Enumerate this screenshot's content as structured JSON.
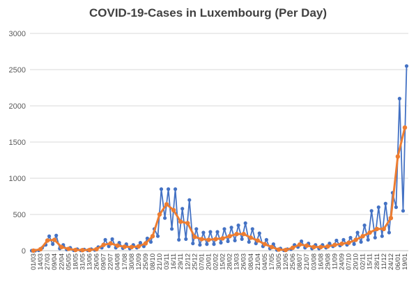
{
  "chart_data": {
    "type": "line",
    "title": "COVID-19-Cases in Luxembourg (Per Day)",
    "xlabel": "",
    "ylabel": "",
    "ylim": [
      0,
      3000
    ],
    "yticks": [
      0,
      500,
      1000,
      1500,
      2000,
      2500,
      3000
    ],
    "grid": "horizontal",
    "legend": "none",
    "categories": [
      "01/03",
      "14/03",
      "27/03",
      "09/04",
      "22/04",
      "05/05",
      "18/05",
      "31/05",
      "13/06",
      "26/06",
      "09/07",
      "22/07",
      "04/08",
      "17/08",
      "30/08",
      "12/09",
      "25/09",
      "08/10",
      "21/10",
      "03/11",
      "16/11",
      "29/11",
      "12/12",
      "25/12",
      "07/01",
      "20/01",
      "02/02",
      "15/02",
      "28/02",
      "13/03",
      "26/03",
      "08/04",
      "21/04",
      "04/05",
      "17/05",
      "30/05",
      "12/06",
      "25/06",
      "08/07",
      "21/07",
      "03/08",
      "16/08",
      "29/08",
      "11/09",
      "24/09",
      "07/10",
      "20/10",
      "02/11",
      "15/11",
      "28/11",
      "11/12",
      "24/12",
      "06/01",
      "19/01"
    ],
    "colors": {
      "daily": "#4472c4",
      "average": "#ed7d31",
      "grid": "#d9d9d9"
    },
    "series": [
      {
        "key": "daily",
        "low": [
          0,
          5,
          80,
          90,
          30,
          15,
          5,
          3,
          5,
          10,
          40,
          60,
          40,
          35,
          30,
          40,
          60,
          120,
          200,
          450,
          300,
          150,
          160,
          100,
          80,
          90,
          90,
          110,
          130,
          140,
          160,
          120,
          100,
          60,
          30,
          10,
          5,
          20,
          50,
          40,
          30,
          30,
          40,
          60,
          70,
          80,
          90,
          120,
          150,
          180,
          200,
          250,
          600,
          550
        ],
        "high": [
          0,
          40,
          200,
          210,
          80,
          40,
          20,
          15,
          20,
          50,
          150,
          160,
          110,
          90,
          80,
          110,
          170,
          300,
          850,
          850,
          850,
          580,
          700,
          300,
          250,
          260,
          260,
          300,
          320,
          350,
          380,
          300,
          240,
          150,
          90,
          30,
          20,
          80,
          130,
          100,
          80,
          80,
          100,
          140,
          150,
          180,
          250,
          350,
          550,
          600,
          650,
          800,
          2100,
          2550
        ]
      },
      {
        "key": "average",
        "values": [
          0,
          20,
          140,
          150,
          50,
          25,
          10,
          8,
          10,
          20,
          80,
          100,
          70,
          55,
          50,
          60,
          100,
          200,
          500,
          640,
          560,
          400,
          380,
          190,
          160,
          150,
          160,
          170,
          200,
          230,
          230,
          180,
          140,
          90,
          50,
          15,
          10,
          40,
          85,
          70,
          50,
          50,
          60,
          80,
          95,
          110,
          150,
          200,
          250,
          300,
          300,
          450,
          1300,
          1700
        ]
      }
    ]
  }
}
